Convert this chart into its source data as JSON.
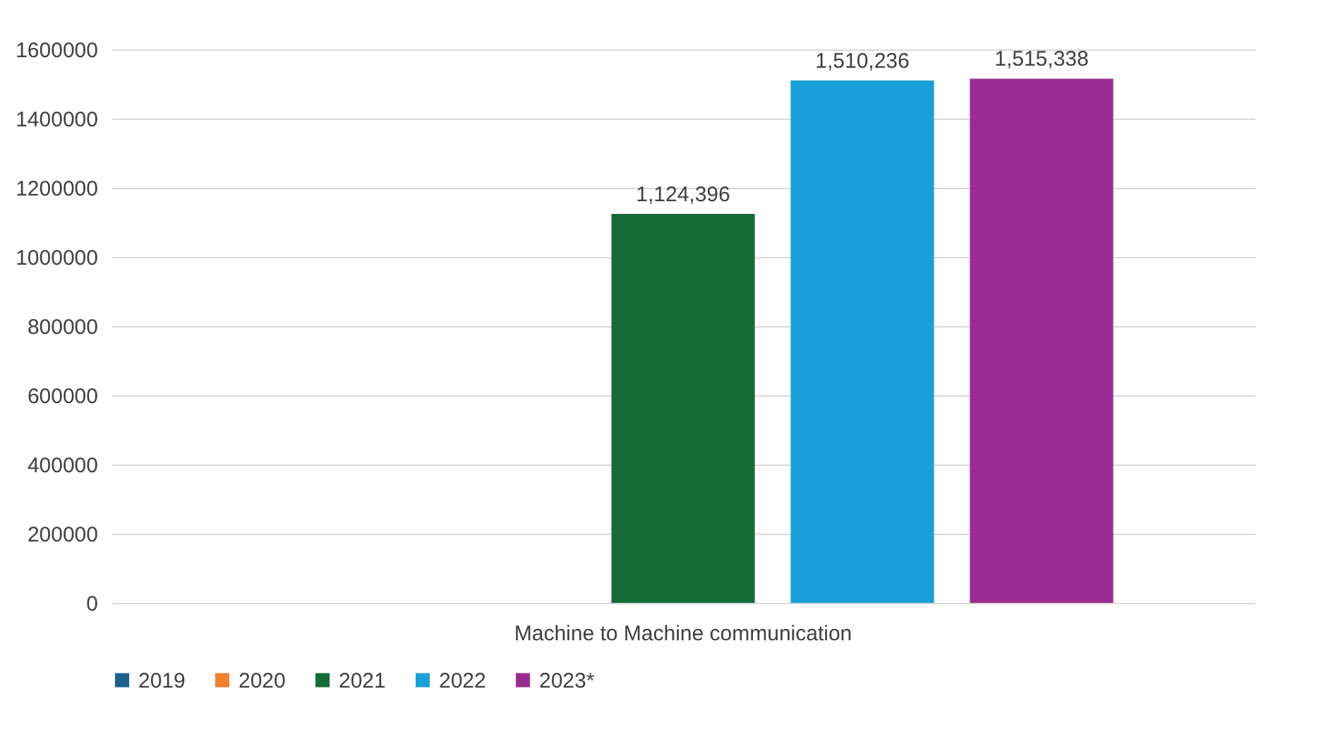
{
  "chart_data": {
    "type": "bar",
    "categories": [
      "Machine to Machine communication"
    ],
    "series": [
      {
        "name": "2019",
        "color": "#1f5f8b",
        "values": [
          null
        ],
        "value_labels": [
          null
        ]
      },
      {
        "name": "2020",
        "color": "#f07f2f",
        "values": [
          null
        ],
        "value_labels": [
          null
        ]
      },
      {
        "name": "2021",
        "color": "#156b38",
        "values": [
          1124396
        ],
        "value_labels": [
          "1,124,396"
        ]
      },
      {
        "name": "2022",
        "color": "#1b9fd8",
        "values": [
          1510236
        ],
        "value_labels": [
          "1,510,236"
        ]
      },
      {
        "name": "2023*",
        "color": "#9b2b93",
        "values": [
          1515338
        ],
        "value_labels": [
          "1,515,338"
        ]
      }
    ],
    "ylim": [
      0,
      1600000
    ],
    "yticks": [
      0,
      200000,
      400000,
      600000,
      800000,
      1000000,
      1200000,
      1400000,
      1600000
    ],
    "grid": "y",
    "legend": "bottom"
  }
}
